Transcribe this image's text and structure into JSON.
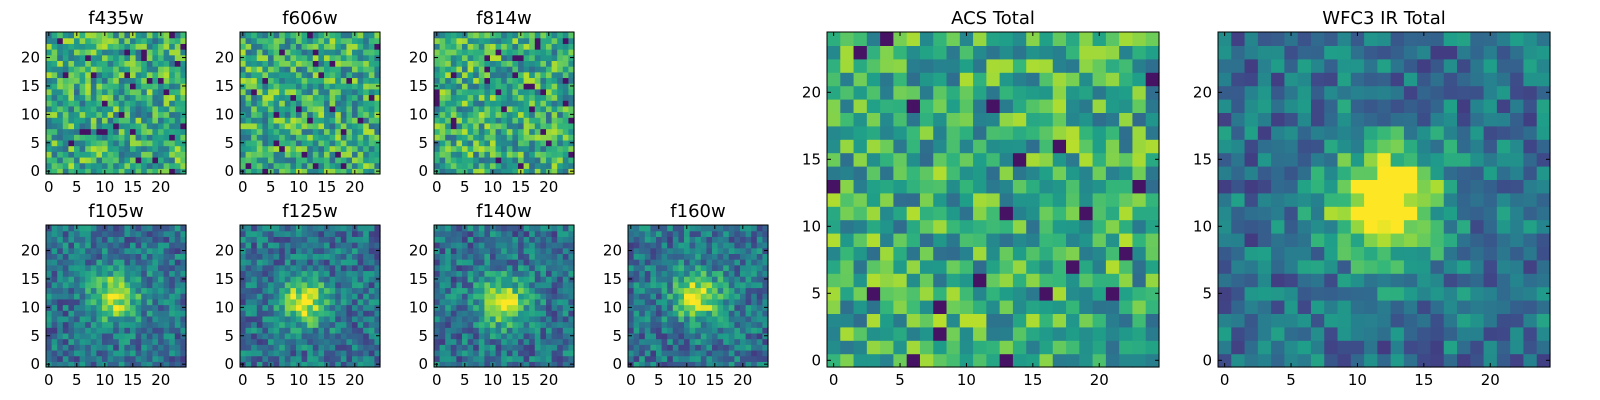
{
  "chart_data": [
    {
      "type": "heatmap",
      "title": "f435w",
      "xticks": [
        "0",
        "5",
        "10",
        "15",
        "20"
      ],
      "yticks": [
        "0",
        "5",
        "10",
        "15",
        "20"
      ],
      "grid_size": 25,
      "xlim": [
        0,
        24
      ],
      "ylim": [
        0,
        24
      ],
      "colormap": "viridis",
      "pattern": "noise",
      "seed": 11,
      "center": [
        12,
        12
      ],
      "peak": 0.0
    },
    {
      "type": "heatmap",
      "title": "f606w",
      "xticks": [
        "0",
        "5",
        "10",
        "15",
        "20"
      ],
      "yticks": [
        "0",
        "5",
        "10",
        "15",
        "20"
      ],
      "grid_size": 25,
      "xlim": [
        0,
        24
      ],
      "ylim": [
        0,
        24
      ],
      "colormap": "viridis",
      "pattern": "noise",
      "seed": 23,
      "center": [
        12,
        12
      ],
      "peak": 0.0
    },
    {
      "type": "heatmap",
      "title": "f814w",
      "xticks": [
        "0",
        "5",
        "10",
        "15",
        "20"
      ],
      "yticks": [
        "0",
        "5",
        "10",
        "15",
        "20"
      ],
      "grid_size": 25,
      "xlim": [
        0,
        24
      ],
      "ylim": [
        0,
        24
      ],
      "colormap": "viridis",
      "pattern": "noise",
      "seed": 37,
      "center": [
        12,
        12
      ],
      "peak": 0.0
    },
    {
      "type": "heatmap",
      "title": "f105w",
      "xticks": [
        "0",
        "5",
        "10",
        "15",
        "20"
      ],
      "yticks": [
        "0",
        "5",
        "10",
        "15",
        "20"
      ],
      "grid_size": 25,
      "xlim": [
        0,
        24
      ],
      "ylim": [
        0,
        24
      ],
      "colormap": "viridis",
      "pattern": "source",
      "seed": 41,
      "center": [
        12,
        12
      ],
      "peak": 0.55
    },
    {
      "type": "heatmap",
      "title": "f125w",
      "xticks": [
        "0",
        "5",
        "10",
        "15",
        "20"
      ],
      "yticks": [
        "0",
        "5",
        "10",
        "15",
        "20"
      ],
      "grid_size": 25,
      "xlim": [
        0,
        24
      ],
      "ylim": [
        0,
        24
      ],
      "colormap": "viridis",
      "pattern": "source",
      "seed": 53,
      "center": [
        11,
        11
      ],
      "peak": 0.55
    },
    {
      "type": "heatmap",
      "title": "f140w",
      "xticks": [
        "0",
        "5",
        "10",
        "15",
        "20"
      ],
      "yticks": [
        "0",
        "5",
        "10",
        "15",
        "20"
      ],
      "grid_size": 25,
      "xlim": [
        0,
        24
      ],
      "ylim": [
        0,
        24
      ],
      "colormap": "viridis",
      "pattern": "source",
      "seed": 67,
      "center": [
        12,
        11
      ],
      "peak": 0.55
    },
    {
      "type": "heatmap",
      "title": "f160w",
      "xticks": [
        "0",
        "5",
        "10",
        "15",
        "20"
      ],
      "yticks": [
        "0",
        "5",
        "10",
        "15",
        "20"
      ],
      "grid_size": 25,
      "xlim": [
        0,
        24
      ],
      "ylim": [
        0,
        24
      ],
      "colormap": "viridis",
      "pattern": "source",
      "seed": 79,
      "center": [
        12,
        12
      ],
      "peak": 0.6
    },
    {
      "type": "heatmap",
      "title": "ACS Total",
      "xticks": [
        "0",
        "5",
        "10",
        "15",
        "20"
      ],
      "yticks": [
        "0",
        "5",
        "10",
        "15",
        "20"
      ],
      "grid_size": 25,
      "xlim": [
        0,
        24
      ],
      "ylim": [
        0,
        24
      ],
      "colormap": "viridis",
      "pattern": "noise",
      "seed": 97,
      "center": [
        12,
        12
      ],
      "peak": 0.0
    },
    {
      "type": "heatmap",
      "title": "WFC3 IR Total",
      "xticks": [
        "0",
        "5",
        "10",
        "15",
        "20"
      ],
      "yticks": [
        "0",
        "5",
        "10",
        "15",
        "20"
      ],
      "grid_size": 25,
      "xlim": [
        0,
        24
      ],
      "ylim": [
        0,
        24
      ],
      "colormap": "viridis",
      "pattern": "source",
      "seed": 101,
      "center": [
        12,
        12
      ],
      "peak": 0.75
    }
  ]
}
